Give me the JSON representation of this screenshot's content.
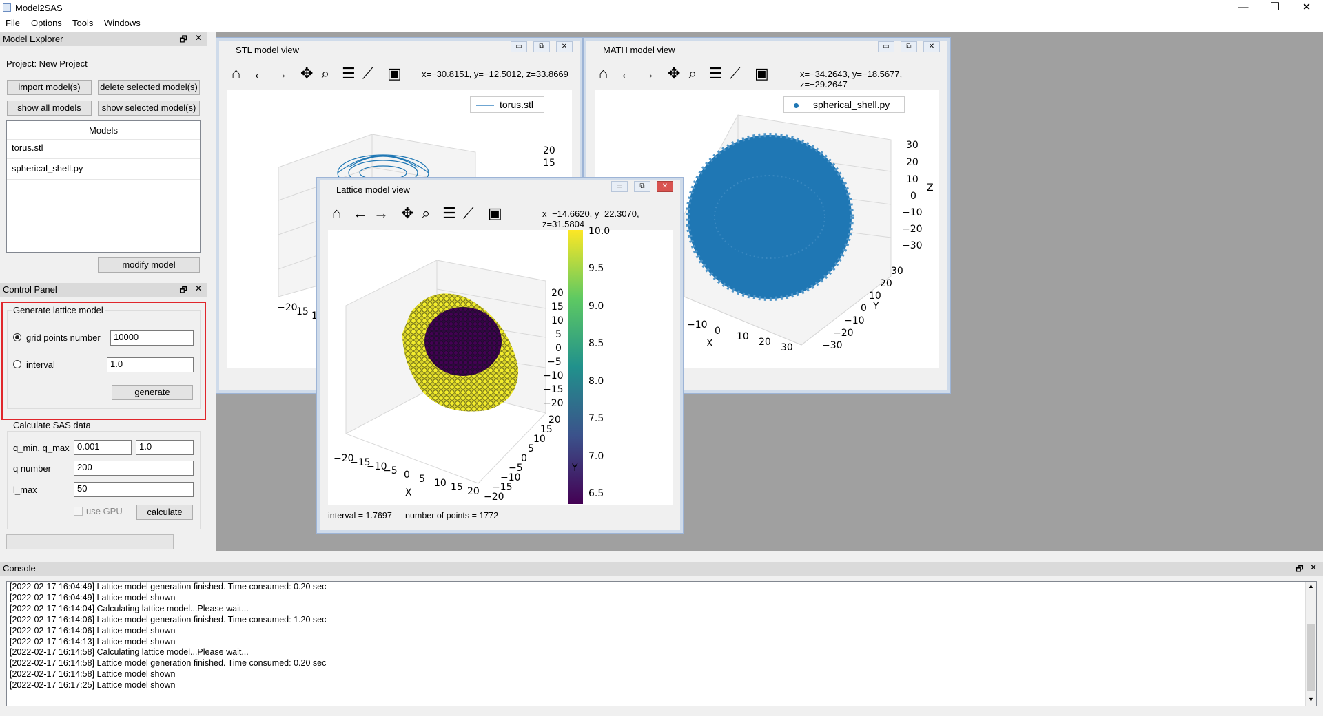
{
  "window": {
    "title": "Model2SAS",
    "minimize": "—",
    "maximize": "❐",
    "close": "✕"
  },
  "menubar": [
    "File",
    "Options",
    "Tools",
    "Windows"
  ],
  "model_explorer": {
    "title": "Model Explorer",
    "project": "Project: New Project",
    "buttons": {
      "import": "import model(s)",
      "delete": "delete selected model(s)",
      "show_all": "show all models",
      "show_selected": "show selected model(s)",
      "modify": "modify model"
    },
    "list_header": "Models",
    "models": [
      "torus.stl",
      "spherical_shell.py"
    ]
  },
  "control_panel": {
    "title": "Control Panel",
    "lattice_group": {
      "title": "Generate lattice model",
      "grid_points_label": "grid points number",
      "grid_points_value": "10000",
      "grid_points_selected": true,
      "interval_label": "interval",
      "interval_value": "1.0",
      "generate": "generate"
    },
    "sas_group": {
      "title": "Calculate SAS data",
      "q_label": "q_min, q_max",
      "q_min": "0.001",
      "q_max": "1.0",
      "q_number_label": "q number",
      "q_number": "200",
      "l_max_label": "l_max",
      "l_max": "50",
      "use_gpu": "use GPU",
      "calculate": "calculate"
    },
    "highlight_color": "#e0262b"
  },
  "stl_view": {
    "title": "STL model view",
    "coords": "x=−30.8151, y=−12.5012, z=33.8669",
    "legend": "torus.stl",
    "ticks": {
      "z_top": "20",
      "z_next": "15",
      "x_a": "−20",
      "x_b": "15",
      "x_c": "10"
    }
  },
  "math_view": {
    "title": "MATH model view",
    "coords": "x=−34.2643, y=−18.5677, z=−29.2647",
    "legend": "spherical_shell.py",
    "z_ticks": [
      "30",
      "20",
      "10",
      "0",
      "−10",
      "−20",
      "−30"
    ],
    "z_label": "Z",
    "y_ticks": [
      "30",
      "20",
      "10",
      "0",
      "−10",
      "−20",
      "−30"
    ],
    "y_label": "Y",
    "x_ticks": [
      "−10",
      "0",
      "10",
      "20",
      "30"
    ],
    "x_label": "X",
    "color": "#1f77b4"
  },
  "lattice_view": {
    "title": "Lattice model view",
    "coords": "x=−14.6620, y=22.3070, z=31.5804",
    "z_ticks": [
      "20",
      "15",
      "10",
      "5",
      "0",
      "−5",
      "−10",
      "−15",
      "−20"
    ],
    "x_ticks": [
      "−20",
      "−15",
      "−10",
      "−5",
      "0",
      "5",
      "10",
      "15",
      "20"
    ],
    "x_label": "X",
    "y_ticks": [
      "20",
      "15",
      "10",
      "5",
      "0",
      "−5",
      "−10",
      "−15",
      "−20"
    ],
    "y_label": "Y",
    "colorbar_ticks": [
      "10.0",
      "9.5",
      "9.0",
      "8.5",
      "8.0",
      "7.5",
      "7.0",
      "6.5"
    ],
    "status_interval": "interval = 1.7697",
    "status_points": "number of points = 1772"
  },
  "console": {
    "title": "Console",
    "lines": [
      "[2022-02-17 16:04:49] Lattice model generation finished. Time consumed: 0.20 sec",
      "[2022-02-17 16:04:49] Lattice model shown",
      "[2022-02-17 16:14:04] Calculating lattice model...Please wait...",
      "[2022-02-17 16:14:06] Lattice model generation finished. Time consumed: 1.20 sec",
      "[2022-02-17 16:14:06] Lattice model shown",
      "[2022-02-17 16:14:13] Lattice model shown",
      "[2022-02-17 16:14:58] Calculating lattice model...Please wait...",
      "[2022-02-17 16:14:58] Lattice model generation finished. Time consumed: 0.20 sec",
      "[2022-02-17 16:14:58] Lattice model shown",
      "[2022-02-17 16:17:25] Lattice model shown"
    ]
  }
}
